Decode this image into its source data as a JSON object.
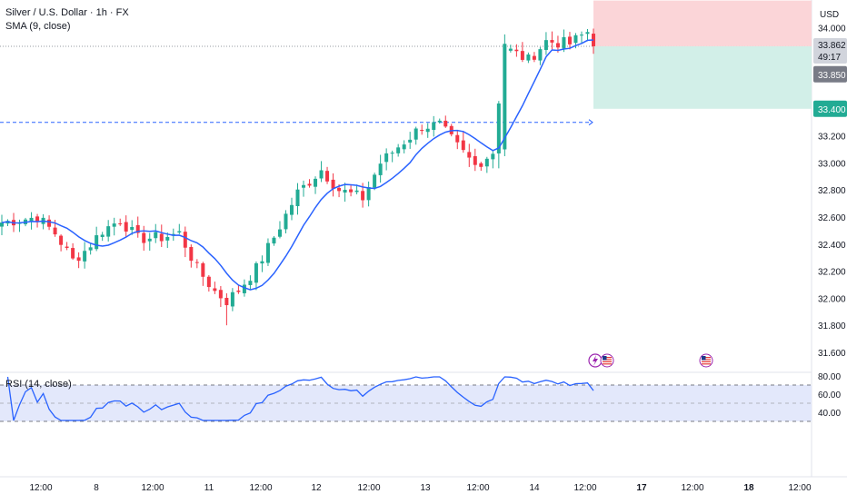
{
  "header": {
    "title": "Silver / U.S. Dollar · 1h · FX",
    "sma_label": "SMA (9, close)",
    "currency": "USD",
    "rsi_label": "RSI (14, close)"
  },
  "price_tags": {
    "last_price": "33.862",
    "countdown": "49:17",
    "sma_value": "33.850",
    "target": "33.400"
  },
  "colors": {
    "up": "#22ab94",
    "down": "#f23645",
    "sma": "#2962ff",
    "rsi": "#2962ff",
    "rsi_band": "#e3e8fb",
    "stop_zone": "#fbd5d8",
    "target_zone": "#d2efe8",
    "target_tag": "#22ab94",
    "last_price_tag": "#d1d4dc",
    "sma_tag": "#787b86"
  },
  "events": [
    "lightning-icon",
    "us-flag-icon",
    "us-flag-icon"
  ],
  "chart_data": [
    {
      "type": "candlestick",
      "title": "Silver / U.S. Dollar · 1h · FX",
      "ylabel": "USD",
      "ylim": [
        31.6,
        34.2
      ],
      "y_ticks": [
        "34.000",
        "33.800",
        "33.600",
        "33.400",
        "33.200",
        "33.000",
        "32.800",
        "32.600",
        "32.400",
        "32.200",
        "32.000",
        "31.800",
        "31.600"
      ],
      "x_ticks": [
        "12:00",
        "8",
        "12:00",
        "11",
        "12:00",
        "12",
        "12:00",
        "13",
        "12:00",
        "14",
        "12:00",
        "17",
        "12:00",
        "18",
        "12:00"
      ],
      "series": [
        {
          "name": "SMA (9, close)",
          "kind": "line"
        }
      ],
      "annotations": {
        "last_price": 33.862,
        "dashed_level": 33.3,
        "position_entry": 33.862,
        "stop_zone": [
          33.862,
          34.2
        ],
        "target_zone": [
          33.4,
          33.862
        ]
      }
    },
    {
      "type": "line",
      "title": "RSI (14, close)",
      "ylim": [
        30,
        82
      ],
      "y_ticks": [
        "80.00",
        "60.00",
        "40.00"
      ],
      "band": [
        30,
        70
      ],
      "midline": 50,
      "series": [
        {
          "name": "RSI (14, close)"
        }
      ]
    }
  ]
}
